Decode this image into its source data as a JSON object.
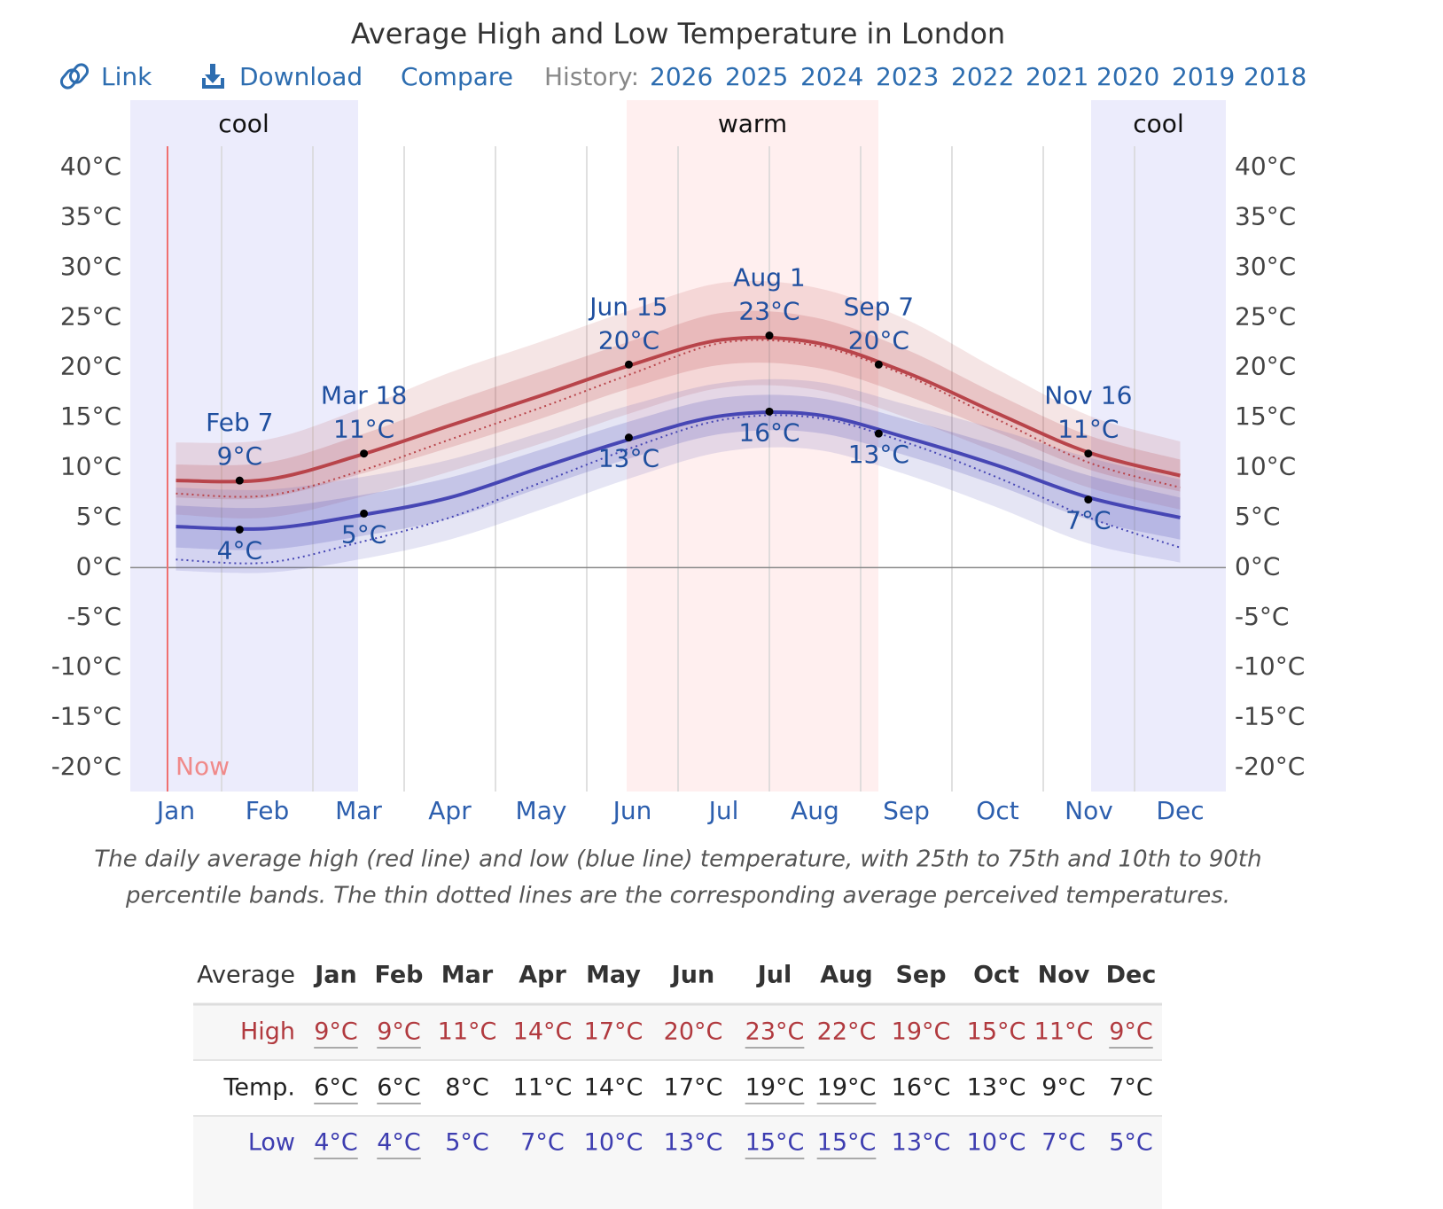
{
  "chart_data": {
    "type": "line",
    "title": "Average High and Low Temperature in London",
    "toolbar": {
      "link": "Link",
      "download": "Download",
      "compare": "Compare",
      "history": "History:",
      "years": [
        "2026",
        "2025",
        "2024",
        "2023",
        "2022",
        "2021",
        "2020",
        "2019",
        "2018"
      ]
    },
    "seasons": [
      "cool",
      "warm",
      "cool"
    ],
    "now": "Now",
    "categories": [
      "Jan",
      "Feb",
      "Mar",
      "Apr",
      "May",
      "Jun",
      "Jul",
      "Aug",
      "Sep",
      "Oct",
      "Nov",
      "Dec"
    ],
    "ylim": [
      -20,
      40
    ],
    "yticks": [
      {
        "value": -20,
        "label": "-20°C"
      },
      {
        "value": -15,
        "label": "-15°C"
      },
      {
        "value": -10,
        "label": "-10°C"
      },
      {
        "value": -5,
        "label": "-5°C"
      },
      {
        "value": 0,
        "label": "0°C"
      },
      {
        "value": 5,
        "label": "5°C"
      },
      {
        "value": 10,
        "label": "10°C"
      },
      {
        "value": 15,
        "label": "15°C"
      },
      {
        "value": 20,
        "label": "20°C"
      },
      {
        "value": 25,
        "label": "25°C"
      },
      {
        "value": 30,
        "label": "30°C"
      },
      {
        "value": 35,
        "label": "35°C"
      },
      {
        "value": 40,
        "label": "40°C"
      }
    ],
    "series": [
      {
        "color": "#b8444a",
        "values": [
          8.7,
          8.8,
          11.2,
          14.2,
          17.2,
          20.3,
          22.8,
          22.5,
          19.5,
          15.4,
          11.5,
          9.2
        ],
        "p10": [
          5.3,
          5.0,
          7.0,
          9.6,
          12.4,
          15.5,
          18.0,
          17.8,
          15.0,
          11.5,
          8.0,
          5.8
        ],
        "p25": [
          7.0,
          7.0,
          9.3,
          12.0,
          14.9,
          18.0,
          20.3,
          20.0,
          17.2,
          13.5,
          9.8,
          7.6
        ],
        "p75": [
          10.3,
          10.5,
          13.2,
          16.5,
          19.6,
          22.7,
          25.5,
          25.0,
          21.8,
          17.3,
          13.2,
          10.8
        ],
        "p90": [
          12.5,
          12.8,
          15.8,
          19.5,
          22.6,
          25.8,
          28.5,
          28.0,
          24.8,
          19.8,
          15.2,
          12.6
        ],
        "perceived": [
          7.4,
          7.2,
          9.6,
          12.8,
          16.0,
          19.4,
          22.5,
          22.2,
          19.2,
          14.8,
          10.5,
          8.0
        ],
        "annotations": [
          {
            "label": "Feb 7",
            "value": 8.7,
            "value_label": "9°C"
          },
          {
            "label": "Mar 18",
            "value": 11.4,
            "value_label": "11°C"
          },
          {
            "label": "Jun 15",
            "value": 20.3,
            "value_label": "20°C"
          },
          {
            "label": "Aug 1",
            "value": 23.2,
            "value_label": "23°C"
          },
          {
            "label": "Sep 7",
            "value": 20.3,
            "value_label": "20°C"
          },
          {
            "label": "Nov 16",
            "value": 11.4,
            "value_label": "11°C"
          }
        ]
      },
      {
        "color": "#4646b4",
        "values": [
          4.1,
          3.9,
          5.2,
          7.0,
          10.0,
          12.9,
          15.2,
          15.3,
          13.0,
          10.2,
          7.0,
          5.0
        ],
        "p10": [
          -0.3,
          -0.5,
          0.8,
          2.8,
          5.8,
          9.0,
          11.6,
          11.8,
          9.3,
          6.0,
          2.4,
          0.5
        ],
        "p25": [
          2.0,
          1.8,
          3.1,
          4.9,
          8.0,
          11.0,
          13.4,
          13.5,
          11.2,
          8.2,
          4.8,
          2.8
        ],
        "p75": [
          6.2,
          6.0,
          7.2,
          9.0,
          11.8,
          14.7,
          17.0,
          17.0,
          14.8,
          12.2,
          9.2,
          7.0
        ],
        "p90": [
          8.0,
          7.8,
          9.0,
          10.8,
          13.5,
          16.3,
          18.5,
          18.6,
          16.3,
          13.8,
          11.0,
          8.8
        ],
        "perceived": [
          0.8,
          0.5,
          2.5,
          5.0,
          8.5,
          12.0,
          14.8,
          15.0,
          12.5,
          9.0,
          5.0,
          2.0
        ],
        "annotations": [
          {
            "label": "Feb 7",
            "value": 3.8,
            "value_label": "4°C"
          },
          {
            "label": "Mar 18",
            "value": 5.4,
            "value_label": "5°C"
          },
          {
            "label": "Jun 15",
            "value": 13.0,
            "value_label": "13°C"
          },
          {
            "label": "Aug 1",
            "value": 15.6,
            "value_label": "16°C"
          },
          {
            "label": "Sep 7",
            "value": 13.4,
            "value_label": "13°C"
          },
          {
            "label": "Nov 16",
            "value": 6.8,
            "value_label": "7°C"
          }
        ]
      }
    ],
    "caption": [
      "The daily average high (red line) and low (blue line) temperature, with 25th to 75th and 10th to 90th",
      "percentile bands. The thin dotted lines are the corresponding average perceived temperatures."
    ]
  },
  "table": {
    "header": [
      "Average",
      "Jan",
      "Feb",
      "Mar",
      "Apr",
      "May",
      "Jun",
      "Jul",
      "Aug",
      "Sep",
      "Oct",
      "Nov",
      "Dec"
    ],
    "rows": [
      [
        "High",
        "9°C",
        "9°C",
        "11°C",
        "14°C",
        "17°C",
        "20°C",
        "23°C",
        "22°C",
        "19°C",
        "15°C",
        "11°C",
        "9°C"
      ],
      [
        "Temp.",
        "6°C",
        "6°C",
        "8°C",
        "11°C",
        "14°C",
        "17°C",
        "19°C",
        "19°C",
        "16°C",
        "13°C",
        "9°C",
        "7°C"
      ],
      [
        "Low",
        "4°C",
        "4°C",
        "5°C",
        "7°C",
        "10°C",
        "13°C",
        "15°C",
        "15°C",
        "13°C",
        "10°C",
        "7°C",
        "5°C"
      ]
    ]
  }
}
